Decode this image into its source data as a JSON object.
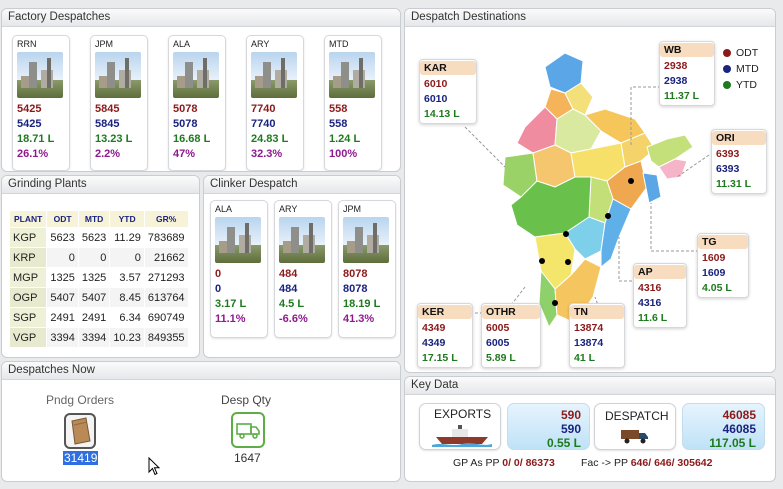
{
  "factory": {
    "title": "Factory Despatches",
    "cards": [
      {
        "code": "RRN",
        "odt": "5425",
        "mtd": "5425",
        "ytd": "18.71 L",
        "gr": "26.1%"
      },
      {
        "code": "JPM",
        "odt": "5845",
        "mtd": "5845",
        "ytd": "13.23 L",
        "gr": "2.2%"
      },
      {
        "code": "ALA",
        "odt": "5078",
        "mtd": "5078",
        "ytd": "16.68 L",
        "gr": "47%"
      },
      {
        "code": "ARY",
        "odt": "7740",
        "mtd": "7740",
        "ytd": "24.83 L",
        "gr": "32.3%"
      },
      {
        "code": "MTD",
        "odt": "558",
        "mtd": "558",
        "ytd": "1.24 L",
        "gr": "100%"
      }
    ]
  },
  "grinding": {
    "title": "Grinding Plants",
    "headers": [
      "PLANT",
      "ODT",
      "MTD",
      "YTD",
      "GR%"
    ],
    "rows": [
      [
        "KGP",
        "5623",
        "5623",
        "11.29",
        "783689"
      ],
      [
        "KRP",
        "0",
        "0",
        "0",
        "21662"
      ],
      [
        "MGP",
        "1325",
        "1325",
        "3.57",
        "271293"
      ],
      [
        "OGP",
        "5407",
        "5407",
        "8.45",
        "613764"
      ],
      [
        "SGP",
        "2491",
        "2491",
        "6.34",
        "690749"
      ],
      [
        "VGP",
        "3394",
        "3394",
        "10.23",
        "849355"
      ]
    ]
  },
  "clinker": {
    "title": "Clinker Despatch",
    "cards": [
      {
        "code": "ALA",
        "odt": "0",
        "mtd": "0",
        "ytd": "3.17 L",
        "gr": "11.1%"
      },
      {
        "code": "ARY",
        "odt": "484",
        "mtd": "484",
        "ytd": "4.5 L",
        "gr": "-6.6%"
      },
      {
        "code": "JPM",
        "odt": "8078",
        "mtd": "8078",
        "ytd": "18.19 L",
        "gr": "41.3%"
      }
    ]
  },
  "now": {
    "title": "Despatches Now",
    "pending_label": "Pndg Orders",
    "pending_value": "31419",
    "desp_label": "Desp Qty",
    "desp_value": "1647"
  },
  "destinations": {
    "title": "Despatch Destinations",
    "legend": [
      {
        "label": "ODT",
        "color": "#8b1a1a"
      },
      {
        "label": "MTD",
        "color": "#1a237e"
      },
      {
        "label": "YTD",
        "color": "#1e7a1e"
      }
    ],
    "states": [
      {
        "code": "KAR",
        "odt": "6010",
        "mtd": "6010",
        "ytd": "14.13 L"
      },
      {
        "code": "WB",
        "odt": "2938",
        "mtd": "2938",
        "ytd": "11.37 L"
      },
      {
        "code": "ORI",
        "odt": "6393",
        "mtd": "6393",
        "ytd": "11.31 L"
      },
      {
        "code": "TG",
        "odt": "1609",
        "mtd": "1609",
        "ytd": "4.05 L"
      },
      {
        "code": "AP",
        "odt": "4316",
        "mtd": "4316",
        "ytd": "11.6 L"
      },
      {
        "code": "TN",
        "odt": "13874",
        "mtd": "13874",
        "ytd": "41 L"
      },
      {
        "code": "OTHR",
        "odt": "6005",
        "mtd": "6005",
        "ytd": "5.89 L"
      },
      {
        "code": "KER",
        "odt": "4349",
        "mtd": "4349",
        "ytd": "17.15 L"
      }
    ]
  },
  "keydata": {
    "title": "Key Data",
    "exports_label": "EXPORTS",
    "exports_values": [
      "590",
      "590",
      "0.55 L"
    ],
    "despatch_label": "DESPATCH",
    "despatch_values": [
      "46085",
      "46085",
      "117.05 L"
    ],
    "gp_label": "GP As PP",
    "gp_value": "0/ 0/ 86373",
    "fac_label": "Fac -> PP",
    "fac_value": "646/ 646/ 305642"
  },
  "colors": {
    "odt": "#8b1a1a",
    "mtd": "#1a237e",
    "ytd": "#1e7a1e",
    "gr": "#8e1a8e",
    "selection": "#2f6fe0"
  }
}
